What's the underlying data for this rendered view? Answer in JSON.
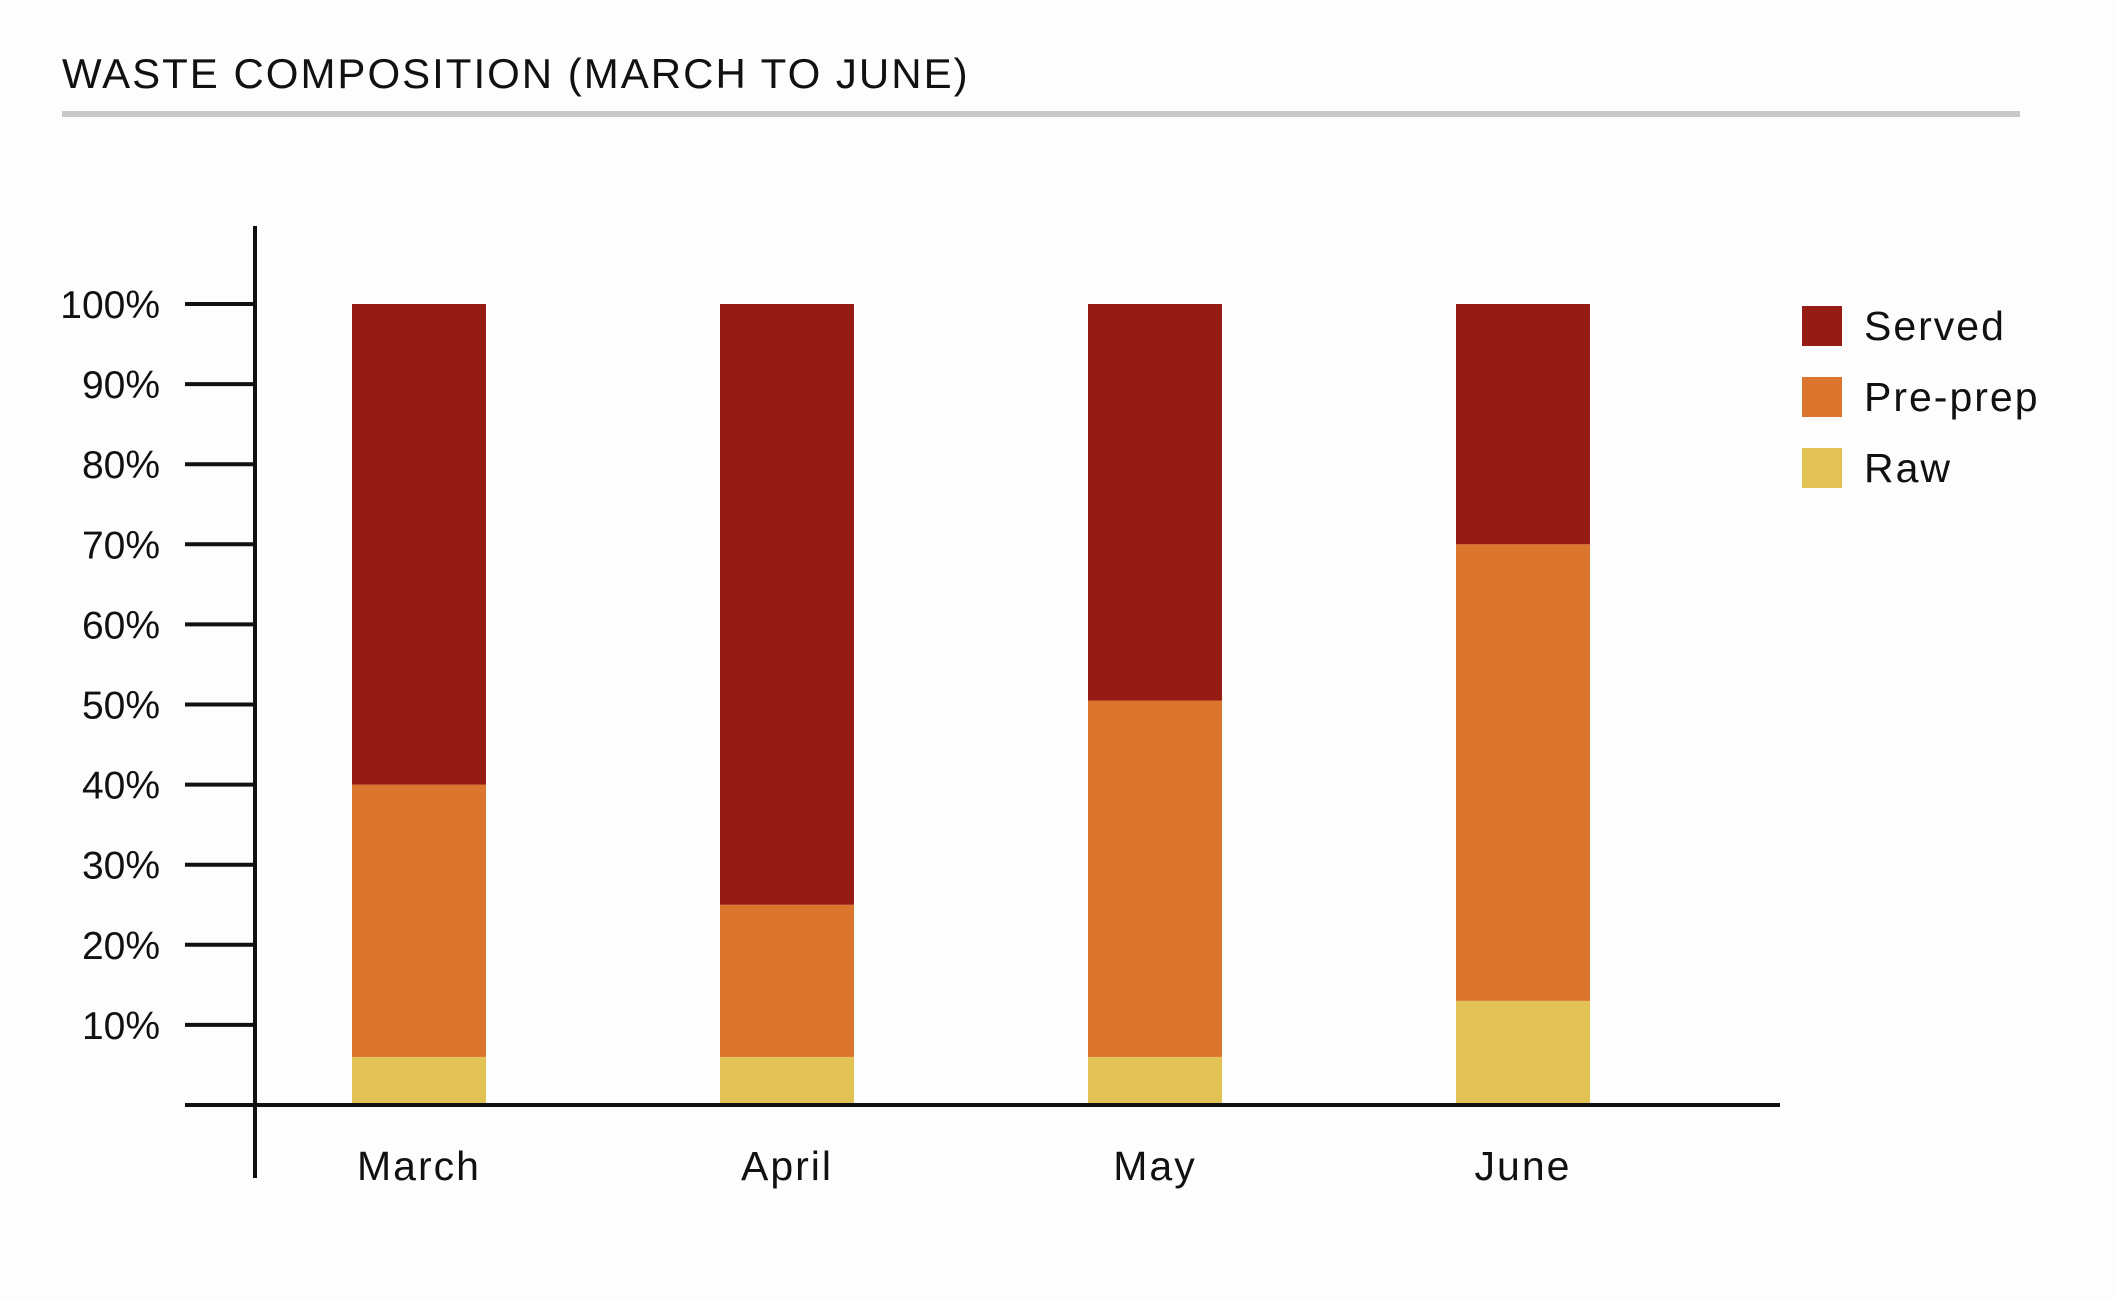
{
  "chart_data": {
    "type": "bar",
    "stacked": true,
    "title": "WASTE COMPOSITION (MARCH TO JUNE)",
    "xlabel": "",
    "ylabel": "",
    "categories": [
      "March",
      "April",
      "May",
      "June"
    ],
    "yticks": [
      "10%",
      "20%",
      "30%",
      "40%",
      "50%",
      "60%",
      "70%",
      "80%",
      "90%",
      "100%"
    ],
    "ylim": [
      0,
      100
    ],
    "grid": false,
    "legend_position": "right",
    "series": [
      {
        "name": "Raw",
        "color": "#e2c254",
        "values": [
          6,
          6,
          6,
          13
        ]
      },
      {
        "name": "Pre-prep",
        "color": "#dc752d",
        "values": [
          34,
          19,
          44.5,
          57
        ]
      },
      {
        "name": "Served",
        "color": "#961b14",
        "values": [
          60,
          75,
          49.5,
          30
        ]
      }
    ],
    "legend_order": [
      "Served",
      "Pre-prep",
      "Raw"
    ]
  }
}
